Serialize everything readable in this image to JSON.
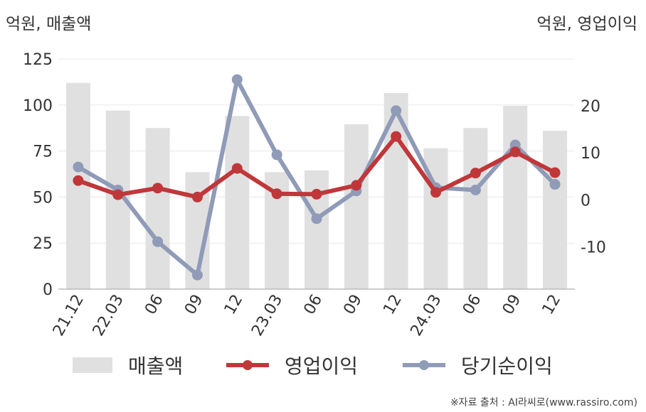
{
  "units": {
    "left": "억원, 매출액",
    "right": "억원, 영업이익"
  },
  "source": "※자료 출처 : AI라씨로(www.rassiro.com)",
  "colors": {
    "revenue": "#e0e0e0",
    "operating_profit": "#c0373a",
    "net_income": "#8f9bb7",
    "axis": "#bbbbbb",
    "grid": "#e8e8e8"
  },
  "chart_data": {
    "type": "bar+line",
    "categories": [
      "21.12",
      "22.03",
      "06",
      "09",
      "12",
      "23.03",
      "06",
      "09",
      "12",
      "24.03",
      "06",
      "09",
      "12"
    ],
    "left_axis": {
      "range": [
        0,
        125
      ],
      "ticks": [
        0,
        25,
        50,
        75,
        100,
        125
      ]
    },
    "right_axis": {
      "range": [
        -19,
        30
      ],
      "ticks": [
        -10,
        0,
        10,
        20
      ]
    },
    "grid": true,
    "legend_position": "bottom",
    "series": [
      {
        "name": "매출액",
        "type": "bar",
        "axis": "left",
        "values": [
          112,
          97,
          87.5,
          63.5,
          94,
          63.5,
          64.5,
          89.5,
          106.5,
          76.5,
          87.5,
          99.5,
          86
        ]
      },
      {
        "name": "영업이익",
        "type": "line",
        "axis": "right",
        "values": [
          4.1,
          1.1,
          2.5,
          0.6,
          6.7,
          1.3,
          1.2,
          3.1,
          13.5,
          1.6,
          5.7,
          10.2,
          5.8
        ]
      },
      {
        "name": "당기순이익",
        "type": "line",
        "axis": "right",
        "values": [
          7.0,
          2.1,
          -8.9,
          -16.0,
          25.6,
          9.6,
          -4.0,
          1.9,
          19.0,
          2.6,
          2.1,
          11.7,
          3.3
        ]
      }
    ]
  }
}
